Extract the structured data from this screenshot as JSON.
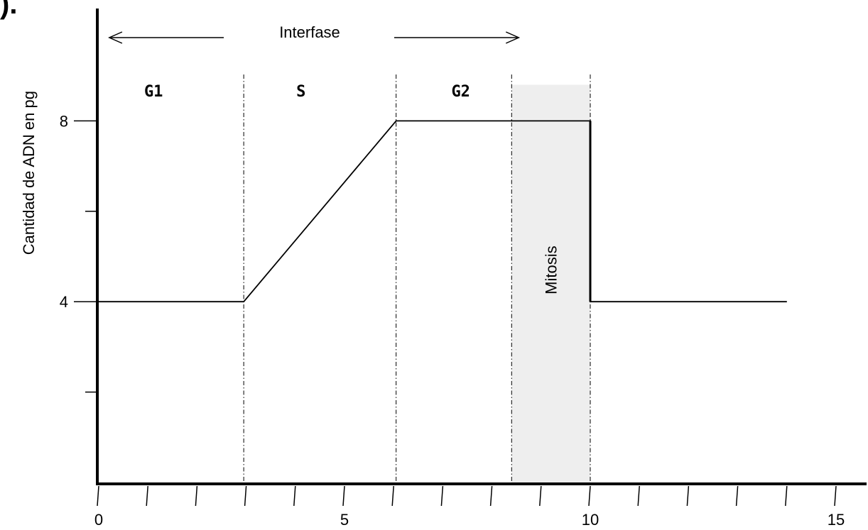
{
  "corner_label": ").",
  "chart_data": {
    "type": "line",
    "title": "",
    "xlabel": "",
    "ylabel": "Cantidad de ADN  en pg",
    "xlim": [
      0,
      15
    ],
    "ylim": [
      0,
      8.8
    ],
    "x_ticks_labeled": [
      {
        "value": 0,
        "label": "0"
      },
      {
        "value": 5,
        "label": "5"
      },
      {
        "value": 10,
        "label": "10"
      },
      {
        "value": 15,
        "label": "15"
      }
    ],
    "x_minor_step": 1,
    "y_ticks_labeled": [
      {
        "value": 4,
        "label": "4"
      },
      {
        "value": 8,
        "label": "8"
      }
    ],
    "y_minor_ticks": [
      2,
      6
    ],
    "grid": false,
    "series": [
      {
        "color": "#000000",
        "x": [
          0,
          2.95,
          6.05,
          10.0,
          10.0,
          14.0
        ],
        "y": [
          4,
          4,
          8,
          8,
          4,
          4
        ]
      }
    ],
    "phase_boundaries": [
      2.95,
      6.05,
      8.4,
      10.0
    ],
    "phases": [
      {
        "label": "G1",
        "x": 1.0
      },
      {
        "label": "S",
        "x": 4.0
      },
      {
        "label": "G2",
        "x": 7.25
      }
    ],
    "shaded_region": {
      "label": "Mitosis",
      "x0": 8.4,
      "x1": 10.0,
      "color": "#eeeeee"
    },
    "span_annotation": {
      "label": "Interfase",
      "x0": 0.1,
      "x1": 8.4
    }
  }
}
